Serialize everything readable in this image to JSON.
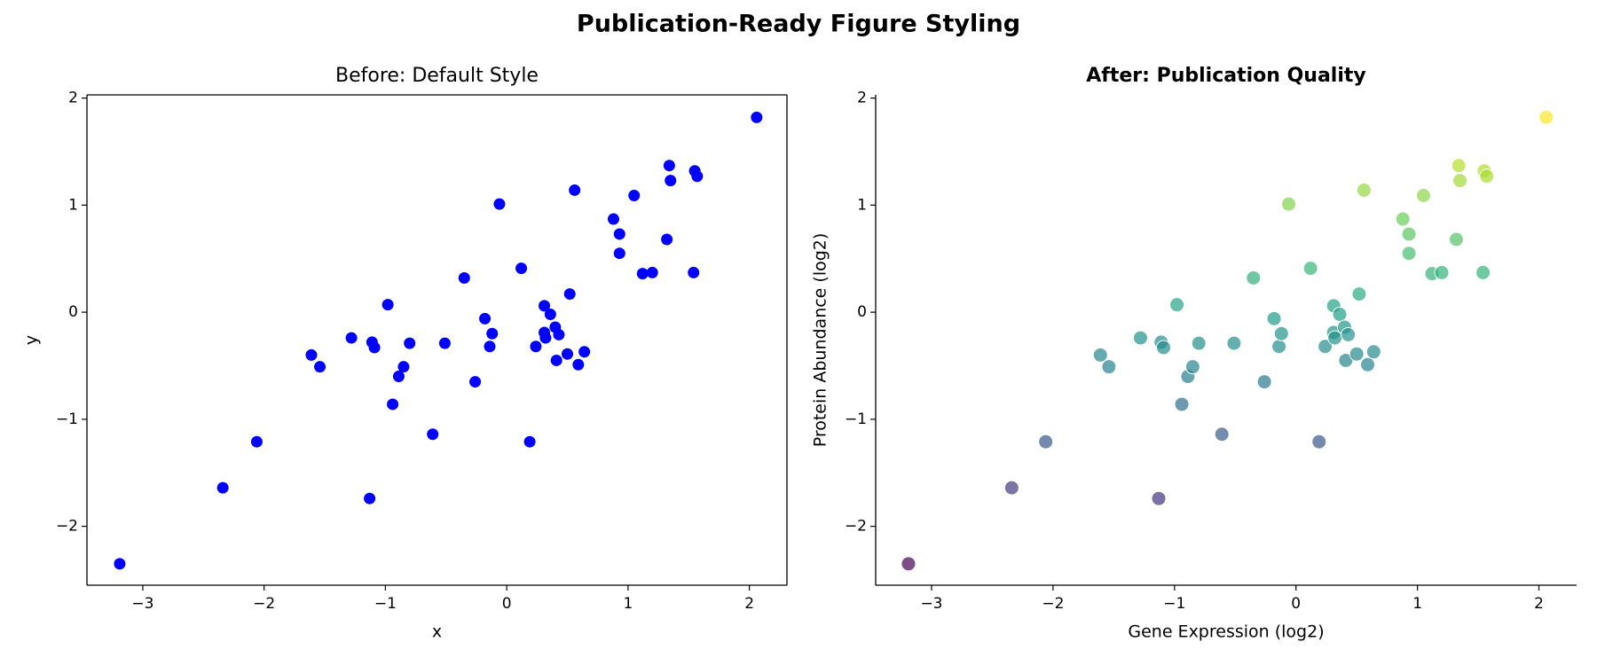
{
  "title": "Publication-Ready Figure Styling",
  "chart_data": [
    {
      "type": "scatter",
      "title": "Before: Default Style",
      "x_label": "x",
      "y_label": "y",
      "x": [
        2.06,
        -3.19,
        -2.34,
        -2.06,
        -1.13,
        -1.61,
        -1.54,
        -1.28,
        -1.11,
        -1.09,
        -0.98,
        -0.94,
        -0.89,
        -0.85,
        -0.8,
        -0.61,
        -0.51,
        -0.35,
        -0.26,
        -0.18,
        -0.14,
        -0.12,
        -0.06,
        0.12,
        0.19,
        0.24,
        0.31,
        0.31,
        0.32,
        0.36,
        0.4,
        0.41,
        0.43,
        0.5,
        0.52,
        0.56,
        0.59,
        0.64,
        0.88,
        0.93,
        0.93,
        1.05,
        1.12,
        1.2,
        1.32,
        1.34,
        1.35,
        1.55,
        1.57,
        1.54
      ],
      "values": [
        1.82,
        -2.35,
        -1.64,
        -1.21,
        -1.74,
        -0.4,
        -0.51,
        -0.24,
        -0.28,
        -0.33,
        0.07,
        -0.86,
        -0.6,
        -0.51,
        -0.29,
        -1.14,
        -0.29,
        0.32,
        -0.65,
        -0.06,
        -0.32,
        -0.2,
        1.01,
        0.41,
        -1.21,
        -0.32,
        0.06,
        -0.19,
        -0.24,
        -0.02,
        -0.14,
        -0.45,
        -0.21,
        -0.39,
        0.17,
        1.14,
        -0.49,
        -0.37,
        0.87,
        0.73,
        0.55,
        1.09,
        0.36,
        0.37,
        0.68,
        1.37,
        1.23,
        1.32,
        1.27,
        0.37
      ],
      "color": "#0000ff",
      "xlim": [
        -3.46,
        2.31
      ],
      "ylim": [
        -2.55,
        2.03
      ],
      "xticks": [
        {
          "value": -3,
          "label": "−3"
        },
        {
          "value": -2,
          "label": "−2"
        },
        {
          "value": -1,
          "label": "−1"
        },
        0,
        1,
        2
      ],
      "yticks": [
        {
          "value": -2,
          "label": "−2"
        },
        {
          "value": -1,
          "label": "−1"
        },
        0,
        1,
        2
      ],
      "spines": "all",
      "title_bold": false
    },
    {
      "type": "scatter",
      "title": "After: Publication Quality",
      "x_label": "Gene Expression (log2)",
      "y_label": "Protein Abundance (log2)",
      "x": [
        2.06,
        -3.19,
        -2.34,
        -2.06,
        -1.13,
        -1.61,
        -1.54,
        -1.28,
        -1.11,
        -1.09,
        -0.98,
        -0.94,
        -0.89,
        -0.85,
        -0.8,
        -0.61,
        -0.51,
        -0.35,
        -0.26,
        -0.18,
        -0.14,
        -0.12,
        -0.06,
        0.12,
        0.19,
        0.24,
        0.31,
        0.31,
        0.32,
        0.36,
        0.4,
        0.41,
        0.43,
        0.5,
        0.52,
        0.56,
        0.59,
        0.64,
        0.88,
        0.93,
        0.93,
        1.05,
        1.12,
        1.2,
        1.32,
        1.34,
        1.35,
        1.55,
        1.57,
        1.54
      ],
      "values": [
        1.82,
        -2.35,
        -1.64,
        -1.21,
        -1.74,
        -0.4,
        -0.51,
        -0.24,
        -0.28,
        -0.33,
        0.07,
        -0.86,
        -0.6,
        -0.51,
        -0.29,
        -1.14,
        -0.29,
        0.32,
        -0.65,
        -0.06,
        -0.32,
        -0.2,
        1.01,
        0.41,
        -1.21,
        -0.32,
        0.06,
        -0.19,
        -0.24,
        -0.02,
        -0.14,
        -0.45,
        -0.21,
        -0.39,
        0.17,
        1.14,
        -0.49,
        -0.37,
        0.87,
        0.73,
        0.55,
        1.09,
        0.36,
        0.37,
        0.68,
        1.37,
        1.23,
        1.32,
        1.27,
        0.37
      ],
      "colormap": "viridis",
      "alpha": 0.7,
      "edgecolor": "#ffffff",
      "xlim": [
        -3.46,
        2.31
      ],
      "ylim": [
        -2.55,
        2.03
      ],
      "xticks": [
        {
          "value": -3,
          "label": "−3"
        },
        {
          "value": -2,
          "label": "−2"
        },
        {
          "value": -1,
          "label": "−1"
        },
        0,
        1,
        2
      ],
      "yticks": [
        {
          "value": -2,
          "label": "−2"
        },
        {
          "value": -1,
          "label": "−1"
        },
        0,
        1,
        2
      ],
      "spines": "left-bottom",
      "title_bold": true
    }
  ]
}
